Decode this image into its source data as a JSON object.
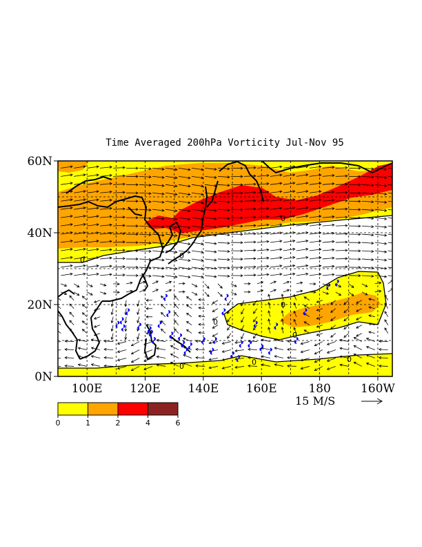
{
  "chart_data": {
    "type": "map",
    "title": "Time Averaged 200hPa Vorticity Jul-Nov 95",
    "region": "Western North Pacific / East Asia",
    "lon_range": [
      90,
      205
    ],
    "lat_range": [
      0,
      60
    ],
    "x_ticks": [
      {
        "lon": 100,
        "label": "100E"
      },
      {
        "lon": 120,
        "label": "120E"
      },
      {
        "lon": 140,
        "label": "140E"
      },
      {
        "lon": 160,
        "label": "160E"
      },
      {
        "lon": 180,
        "label": "180"
      },
      {
        "lon": 200,
        "label": "160W"
      }
    ],
    "y_ticks": [
      {
        "lat": 60,
        "label": "60N"
      },
      {
        "lat": 40,
        "label": "40N"
      },
      {
        "lat": 20,
        "label": "20N"
      },
      {
        "lat": 0,
        "label": "0N"
      }
    ],
    "grid": "dashed every 10 degrees",
    "fields": {
      "shaded": "200 hPa relative vorticity (positive values shaded)",
      "contour_labels": [
        "0"
      ],
      "vectors": "200 hPa wind vectors"
    },
    "reference_vector": {
      "label": "15 M/S",
      "arrow": "→"
    },
    "colorbar": {
      "levels": [
        "0",
        "1",
        "2",
        "4",
        "6"
      ],
      "colors": [
        "#ffff00",
        "#ffa500",
        "#ff0000",
        "#8b2323"
      ]
    },
    "tropical_cyclone_symbol_color": "#0000ff"
  }
}
